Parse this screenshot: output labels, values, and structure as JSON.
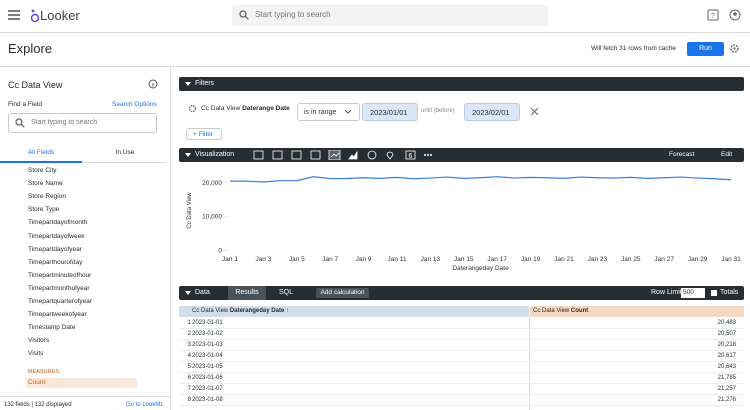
{
  "header": {
    "logo": "Looker",
    "search_placeholder": "Start typing to search"
  },
  "toolbar": {
    "title": "Explore",
    "cache_note": "Will fetch 31 rows from cache",
    "run": "Run"
  },
  "sidebar": {
    "title": "Cc Data View",
    "find_label": "Find a Field",
    "search_options": "Search Options",
    "search_placeholder": "Start typing to search",
    "tabs": [
      "All Fields",
      "In Use"
    ],
    "fields": [
      "Store City",
      "Store Name",
      "Store Region",
      "Store Type",
      "Timepartdayofmonth",
      "Timepartdayofweek",
      "Timepartdayofyear",
      "Timeparthourofday",
      "Timepartminuteofhour",
      "Timepartmonthofyear",
      "Timepartquarterofyear",
      "Timepartweekofyear",
      "Timestamp Date",
      "Visitors",
      "Visits"
    ],
    "measures_label": "MEASURES",
    "measures": [
      "Count"
    ],
    "footer_count": "132 fields | 132 displayed",
    "footer_link": "Go to LookML"
  },
  "filters": {
    "title": "Filters",
    "field_prefix": "Cc Data View",
    "field_name": "Daterange Date",
    "operator": "is in range",
    "from": "2023/01/01",
    "separator": "until (before)",
    "to": "2023/02/01",
    "add": "Filter"
  },
  "visualization": {
    "title": "Visualization",
    "forecast": "Forecast",
    "edit": "Edit"
  },
  "chart_data": {
    "type": "line",
    "y_label": "Cc Data View",
    "x_label": "Daterangeday Date",
    "color": "#3b7ddd",
    "categories": [
      "Jan 1",
      null,
      "Jan 3",
      null,
      "Jan 5",
      null,
      "Jan 7",
      null,
      "Jan 9",
      null,
      "Jan 11",
      null,
      "Jan 13",
      null,
      "Jan 15",
      null,
      "Jan 17",
      null,
      "Jan 19",
      null,
      "Jan 21",
      null,
      "Jan 23",
      null,
      "Jan 25",
      null,
      "Jan 27",
      null,
      "Jan 29",
      null,
      "Jan 31"
    ],
    "values": [
      20483,
      20507,
      20218,
      20617,
      20643,
      21785,
      21257,
      21276,
      21500,
      21300,
      21600,
      21200,
      21400,
      21700,
      21300,
      21500,
      21800,
      21400,
      21600,
      21500,
      21300,
      21700,
      21500,
      21400,
      21600,
      21300,
      21500,
      21700,
      21400,
      21200,
      20900
    ],
    "ylim": [
      0,
      23500
    ],
    "yticks": [
      0,
      {
        "value": 10000,
        "label": "10,000"
      },
      {
        "value": 20000,
        "label": "20,000"
      }
    ]
  },
  "data_panel": {
    "title": "Data",
    "tabs": [
      "Results",
      "SQL"
    ],
    "add_calculation": "Add calculation",
    "row_limit_label": "Row Limit",
    "row_limit": "500",
    "totals": "Totals",
    "columns": [
      {
        "prefix": "Cc Data View",
        "name": "Daterangeday Date"
      },
      {
        "prefix": "Cc Data View",
        "name": "Count"
      }
    ],
    "rows": [
      [
        1,
        "2023-01-01",
        "20,483"
      ],
      [
        2,
        "2023-01-02",
        "20,507"
      ],
      [
        3,
        "2023-01-03",
        "20,218"
      ],
      [
        4,
        "2023-01-04",
        "20,617"
      ],
      [
        5,
        "2023-01-05",
        "20,643"
      ],
      [
        6,
        "2023-01-06",
        "21,785"
      ],
      [
        7,
        "2023-01-07",
        "21,257"
      ],
      [
        8,
        "2023-01-08",
        "21,276"
      ]
    ]
  }
}
